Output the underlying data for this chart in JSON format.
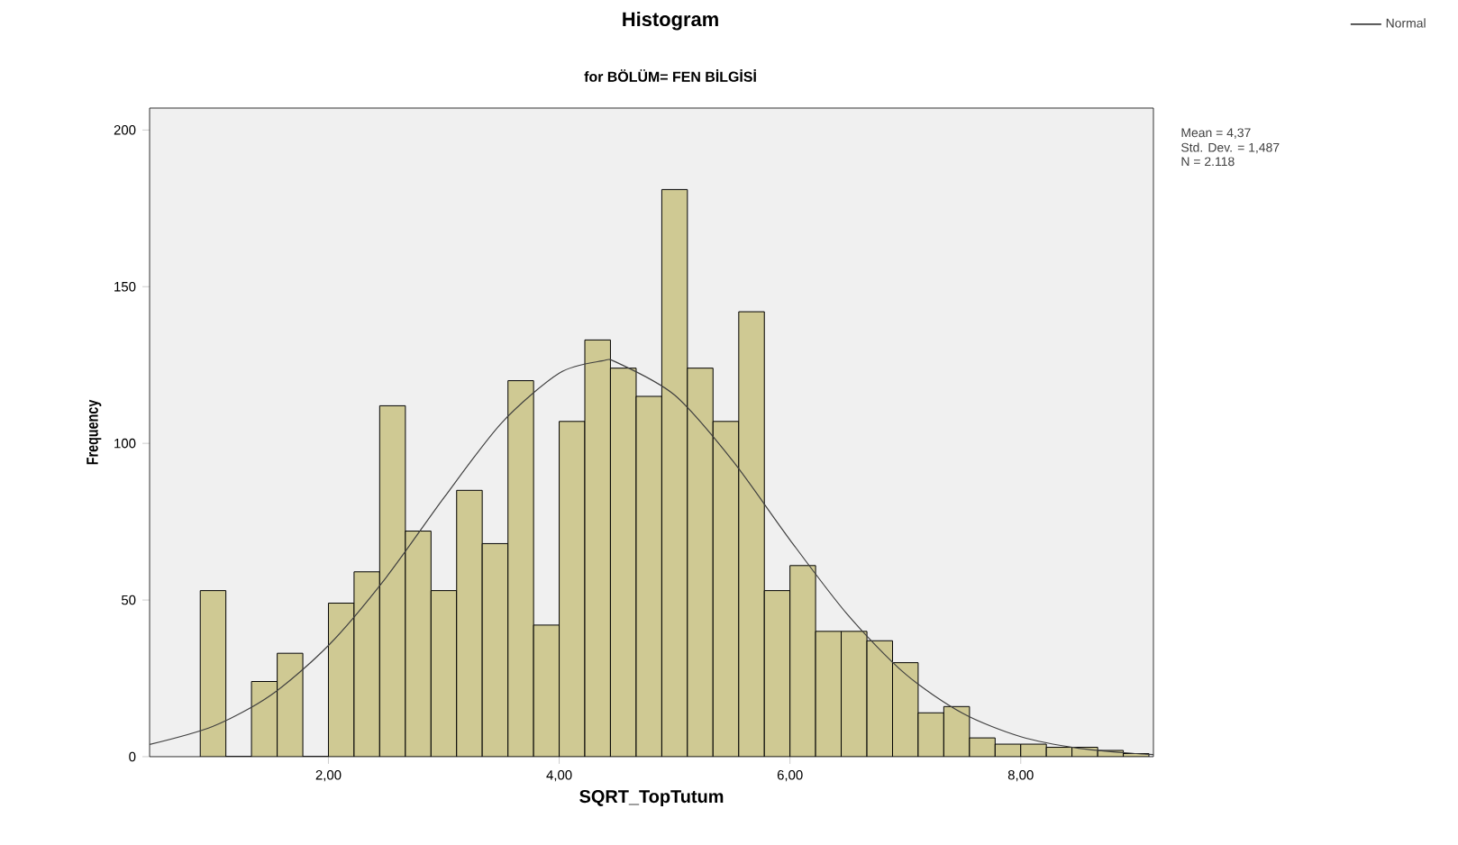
{
  "chart_data": {
    "type": "histogram",
    "title": "Histogram",
    "subtitle": "for BÖLÜM= FEN BİLGİSİ",
    "xlabel": "SQRT_TopTutum",
    "ylabel": "Frequency",
    "annotations": [
      "Mean = 4,37",
      "Std. Dev. = 1,487",
      "N = 2.118"
    ],
    "xlim": [
      0.45,
      9.15
    ],
    "ylim": [
      0,
      207
    ],
    "xticks": [
      {
        "value": 2,
        "label": "2,00"
      },
      {
        "value": 4,
        "label": "4,00"
      },
      {
        "value": 6,
        "label": "6,00"
      },
      {
        "value": 8,
        "label": "8,00"
      }
    ],
    "yticks": [
      0,
      50,
      100,
      150,
      200
    ],
    "grid": false,
    "legend": "top right",
    "series": [
      {
        "type": "histogram",
        "color": "#cfc993",
        "bins": [
          0.889,
          1.111,
          1.333,
          1.556,
          1.778,
          2.0,
          2.222,
          2.444,
          2.667,
          2.889,
          3.111,
          3.333,
          3.556,
          3.778,
          4.0,
          4.222,
          4.444,
          4.667,
          4.889,
          5.111,
          5.333,
          5.556,
          5.778,
          6.0,
          6.222,
          6.444,
          6.667,
          6.889,
          7.111,
          7.333,
          7.556,
          7.778,
          8.0,
          8.222,
          8.444,
          8.667,
          8.889,
          9.111
        ],
        "values": [
          53,
          0,
          24,
          33,
          0,
          49,
          59,
          112,
          72,
          53,
          85,
          68,
          120,
          42,
          107,
          133,
          124,
          115,
          181,
          124,
          107,
          142,
          53,
          61,
          40,
          40,
          37,
          30,
          14,
          16,
          6,
          4,
          4,
          3,
          3,
          2,
          1
        ]
      },
      {
        "type": "line",
        "name": "Normal",
        "color": "#404040",
        "x": [
          0.45,
          1,
          1.5,
          2,
          2.5,
          3,
          3.5,
          4,
          4.37,
          4.5,
          5,
          5.5,
          6,
          6.5,
          7,
          7.5,
          8,
          8.5,
          9,
          9.15
        ],
        "values": [
          3.9,
          9.7,
          19.6,
          35.5,
          57.2,
          82.6,
          106.5,
          122.4,
          126.3,
          125.8,
          115.4,
          94.6,
          69.2,
          45.3,
          26.4,
          13.8,
          6.4,
          2.7,
          1.0,
          0.7
        ]
      }
    ]
  }
}
